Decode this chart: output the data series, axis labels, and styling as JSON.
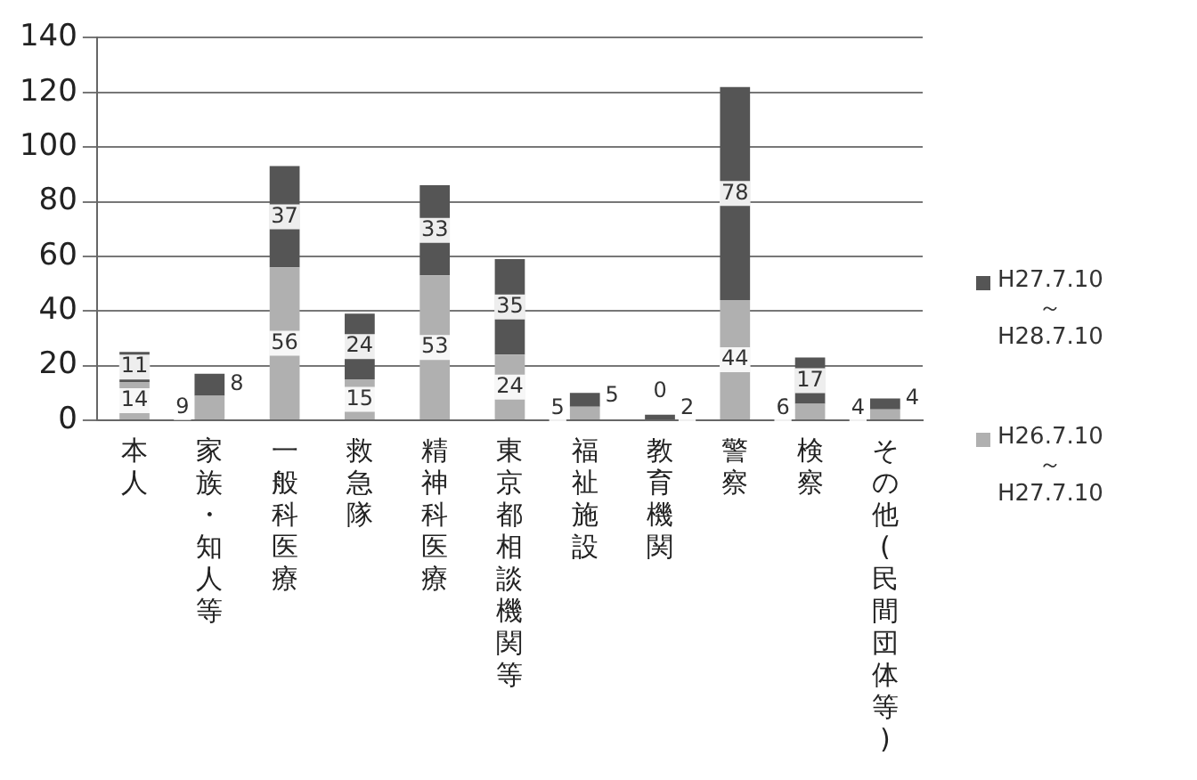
{
  "chart_data": {
    "type": "bar",
    "stacked": true,
    "categories": [
      "本人",
      "家族・知人等",
      "一般科医療",
      "救急隊",
      "精神科医療",
      "東京都相談機関等",
      "福祉施設",
      "教育機関",
      "警察",
      "検察",
      "その他(民間団体等)"
    ],
    "series": [
      {
        "name": "H26.7.10\n～\nH27.7.10",
        "color": "#b0b0b0",
        "values": [
          14,
          9,
          56,
          15,
          53,
          24,
          5,
          0,
          44,
          6,
          4
        ]
      },
      {
        "name": "H27.7.10\n～\nH28.7.10",
        "color": "#555555",
        "values": [
          11,
          8,
          37,
          24,
          33,
          35,
          5,
          2,
          78,
          17,
          4
        ]
      }
    ],
    "ylim": [
      0,
      140
    ],
    "yticks": [
      0,
      20,
      40,
      60,
      80,
      100,
      120,
      140
    ],
    "grid": "y",
    "legend": "right",
    "data_labels": true
  }
}
